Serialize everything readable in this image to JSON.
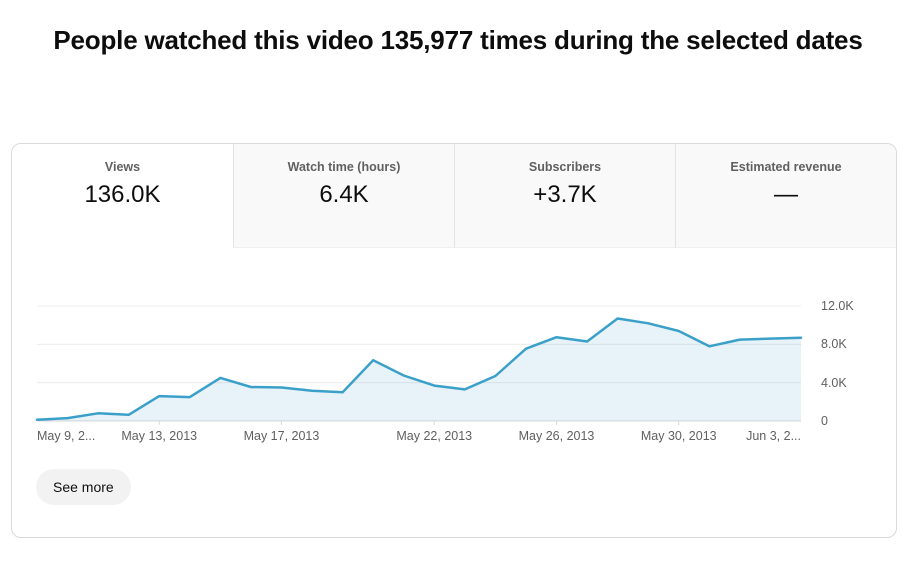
{
  "header": {
    "title": "People watched this video 135,977 times during the selected dates"
  },
  "tabs": [
    {
      "label": "Views",
      "value": "136.0K",
      "active": true
    },
    {
      "label": "Watch time (hours)",
      "value": "6.4K",
      "active": false
    },
    {
      "label": "Subscribers",
      "value": "+3.7K",
      "active": false
    },
    {
      "label": "Estimated revenue",
      "value": "—",
      "active": false
    }
  ],
  "chart_data": {
    "type": "area",
    "title": "",
    "xlabel": "",
    "ylabel": "",
    "grid": true,
    "legend": false,
    "x": [
      "May 9, 2013",
      "May 10, 2013",
      "May 11, 2013",
      "May 12, 2013",
      "May 13, 2013",
      "May 14, 2013",
      "May 15, 2013",
      "May 16, 2013",
      "May 17, 2013",
      "May 18, 2013",
      "May 19, 2013",
      "May 20, 2013",
      "May 21, 2013",
      "May 22, 2013",
      "May 23, 2013",
      "May 24, 2013",
      "May 25, 2013",
      "May 26, 2013",
      "May 27, 2013",
      "May 28, 2013",
      "May 29, 2013",
      "May 30, 2013",
      "May 31, 2013",
      "Jun 1, 2013",
      "Jun 2, 2013",
      "Jun 3, 2013"
    ],
    "series": [
      {
        "name": "Views",
        "values": [
          127,
          300,
          800,
          650,
          2600,
          2500,
          4500,
          3550,
          3500,
          3150,
          3000,
          6350,
          4750,
          3700,
          3300,
          4700,
          7550,
          8750,
          8300,
          10700,
          10200,
          9400,
          7800,
          8500,
          8600,
          8700
        ]
      }
    ],
    "ylim": [
      0,
      13050
    ],
    "yticks": [
      {
        "label": "12.0K",
        "value": 12000
      },
      {
        "label": "8.0K",
        "value": 8000
      },
      {
        "label": "4.0K",
        "value": 4000
      },
      {
        "label": "0",
        "value": 0
      }
    ],
    "xticks": [
      {
        "label": "May 9, 2...",
        "index": 0,
        "align": "left"
      },
      {
        "label": "May 13, 2013",
        "index": 4,
        "align": "center"
      },
      {
        "label": "May 17, 2013",
        "index": 8,
        "align": "center"
      },
      {
        "label": "May 22, 2013",
        "index": 13,
        "align": "center"
      },
      {
        "label": "May 26, 2013",
        "index": 17,
        "align": "center"
      },
      {
        "label": "May 30, 2013",
        "index": 21,
        "align": "center"
      },
      {
        "label": "Jun 3, 2...",
        "index": 25,
        "align": "right"
      }
    ],
    "line_color": "#3ba0c9",
    "fill_color": "rgba(59,160,201,0.12)",
    "gridline_color": "#ececec",
    "baseline_color": "#d9d9d9"
  },
  "footer": {
    "see_more_label": "See more"
  }
}
